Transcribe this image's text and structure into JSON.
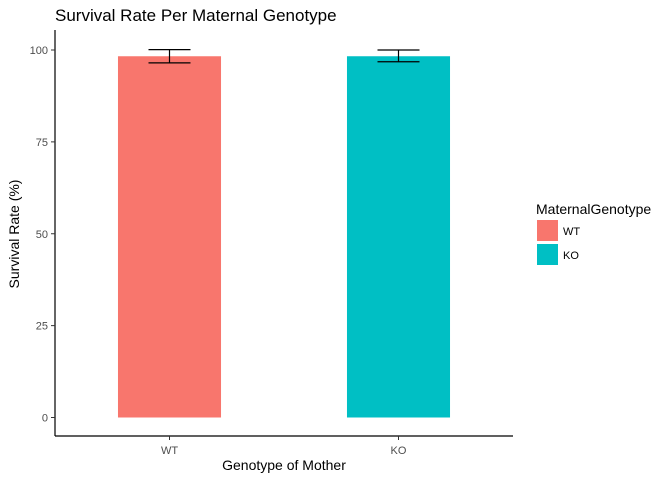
{
  "chart_data": {
    "type": "bar",
    "title": "Survival Rate Per Maternal Genotype",
    "xlabel": "Genotype of Mother",
    "ylabel": "Survival Rate (%)",
    "categories": [
      "WT",
      "KO"
    ],
    "values": [
      98.3,
      98.3
    ],
    "error_lower": [
      96.5,
      96.8
    ],
    "error_upper": [
      100.1,
      100.0
    ],
    "colors": [
      "#F8766D",
      "#00BFC4"
    ],
    "ylim": [
      -5,
      104.5
    ],
    "yticks": [
      0,
      25,
      50,
      75,
      100
    ],
    "grid": false,
    "legend": {
      "title": "MaternalGenotype",
      "position": "right",
      "entries": [
        "WT",
        "KO"
      ]
    }
  }
}
